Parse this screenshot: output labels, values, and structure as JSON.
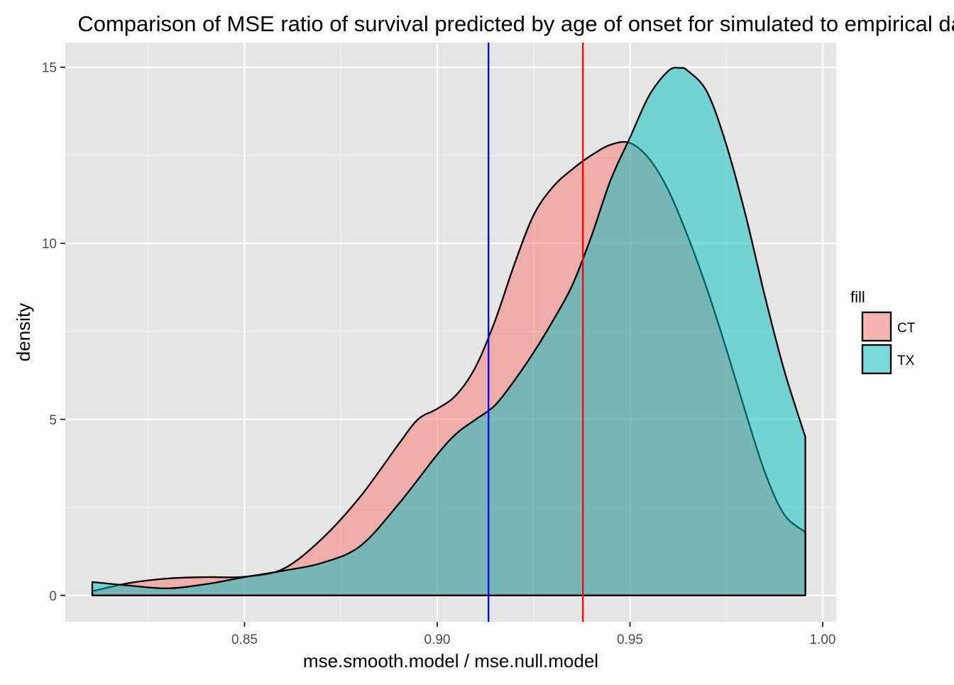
{
  "chart_data": {
    "type": "area",
    "title": "Comparison of MSE ratio of survival predicted by age of onset for simulated to empirical data",
    "xlabel": "mse.smooth.model / mse.null.model",
    "ylabel": "density",
    "xlim": [
      0.8035,
      1.0035
    ],
    "ylim": [
      -0.75,
      15.7
    ],
    "x_ticks": [
      0.85,
      0.9,
      0.95,
      1.0
    ],
    "x_tick_labels": [
      "0.85",
      "0.90",
      "0.95",
      "1.00"
    ],
    "y_ticks": [
      0,
      5,
      10,
      15
    ],
    "y_tick_labels": [
      "0",
      "5",
      "10",
      "15"
    ],
    "grid": true,
    "panel_background": "#e5e5e5",
    "legend": {
      "title": "fill",
      "position": "right"
    },
    "series": [
      {
        "name": "CT",
        "color": "#f8766d",
        "x": [
          0.8105,
          0.82,
          0.83,
          0.84,
          0.85,
          0.86,
          0.87,
          0.88,
          0.89,
          0.895,
          0.9,
          0.905,
          0.91,
          0.915,
          0.92,
          0.925,
          0.93,
          0.935,
          0.94,
          0.945,
          0.95,
          0.955,
          0.96,
          0.965,
          0.97,
          0.975,
          0.98,
          0.985,
          0.99,
          0.9955
        ],
        "values": [
          0.12,
          0.35,
          0.48,
          0.52,
          0.53,
          0.75,
          1.6,
          2.8,
          4.3,
          5.0,
          5.3,
          5.7,
          6.5,
          7.8,
          9.4,
          10.8,
          11.6,
          12.1,
          12.5,
          12.8,
          12.85,
          12.4,
          11.5,
          10.2,
          8.7,
          7.0,
          5.2,
          3.5,
          2.3,
          1.8
        ]
      },
      {
        "name": "TX",
        "color": "#00bfc4",
        "x": [
          0.8105,
          0.82,
          0.83,
          0.84,
          0.85,
          0.86,
          0.87,
          0.88,
          0.89,
          0.9,
          0.905,
          0.91,
          0.915,
          0.92,
          0.925,
          0.93,
          0.935,
          0.94,
          0.945,
          0.95,
          0.955,
          0.96,
          0.963,
          0.965,
          0.97,
          0.975,
          0.98,
          0.985,
          0.99,
          0.9955
        ],
        "values": [
          0.38,
          0.28,
          0.2,
          0.32,
          0.52,
          0.7,
          0.92,
          1.4,
          2.6,
          4.0,
          4.6,
          5.0,
          5.4,
          6.1,
          6.9,
          7.8,
          8.8,
          10.2,
          11.8,
          13.0,
          14.2,
          14.9,
          14.98,
          14.9,
          14.3,
          12.8,
          10.8,
          8.5,
          6.4,
          4.5
        ]
      }
    ],
    "vlines": [
      {
        "x": 0.9133,
        "color": "#0000ff"
      },
      {
        "x": 0.9378,
        "color": "#ff0000"
      }
    ]
  }
}
